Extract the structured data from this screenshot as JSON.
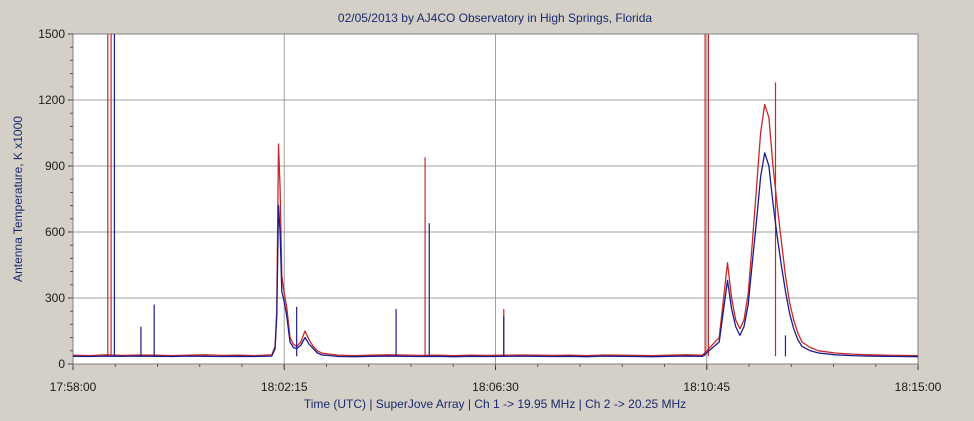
{
  "chart_data": {
    "type": "line",
    "title": "02/05/2013  by  AJ4CO Observatory  in  High Springs, Florida",
    "xlabel": "Time (UTC)  |  SuperJove Array  |  Ch 1 -> 19.95 MHz  |  Ch 2 -> 20.25 MHz",
    "ylabel": "Antenna Temperature, K x1000",
    "x_tick_labels": [
      "17:58:00",
      "18:02:15",
      "18:06:30",
      "18:10:45",
      "18:15:00"
    ],
    "x_tick_seconds": [
      0,
      255,
      510,
      765,
      1020
    ],
    "xlim_seconds": [
      0,
      1020
    ],
    "y_ticks": [
      0,
      300,
      600,
      900,
      1200,
      1500
    ],
    "ylim": [
      0,
      1500
    ],
    "grid": true,
    "colors": {
      "ch1": "#c62828",
      "ch2": "#1c1c8c",
      "grid": "#a0a0a0",
      "plot_bg": "#ffffff",
      "frame_bg": "#d4d0c8"
    },
    "series": [
      {
        "name": "Ch 1 -> 19.95 MHz",
        "color": "#c62828",
        "x": [
          0,
          20,
          40,
          60,
          80,
          100,
          120,
          140,
          160,
          180,
          200,
          220,
          240,
          244,
          246,
          248,
          250,
          252,
          255,
          258,
          262,
          266,
          270,
          275,
          280,
          285,
          290,
          295,
          300,
          310,
          320,
          340,
          360,
          380,
          400,
          420,
          440,
          460,
          480,
          500,
          520,
          540,
          560,
          580,
          600,
          620,
          640,
          660,
          680,
          700,
          720,
          740,
          760,
          780,
          790,
          795,
          800,
          805,
          810,
          815,
          820,
          825,
          830,
          835,
          840,
          845,
          850,
          855,
          860,
          865,
          870,
          875,
          880,
          890,
          900,
          920,
          940,
          960,
          980,
          1000,
          1020
        ],
        "values": [
          40,
          38,
          42,
          39,
          41,
          40,
          38,
          40,
          42,
          39,
          40,
          38,
          42,
          80,
          250,
          1000,
          800,
          400,
          320,
          260,
          120,
          90,
          80,
          100,
          150,
          110,
          80,
          60,
          50,
          45,
          40,
          38,
          40,
          42,
          41,
          39,
          40,
          38,
          40,
          39,
          40,
          41,
          40,
          39,
          40,
          38,
          41,
          40,
          39,
          38,
          40,
          42,
          40,
          120,
          460,
          300,
          200,
          160,
          200,
          320,
          550,
          800,
          1050,
          1180,
          1120,
          900,
          720,
          560,
          400,
          280,
          200,
          140,
          100,
          75,
          60,
          50,
          45,
          42,
          40,
          39,
          38
        ],
        "spikes": [
          {
            "x": 42,
            "y": 1500
          },
          {
            "x": 46,
            "y": 1500
          },
          {
            "x": 425,
            "y": 940
          },
          {
            "x": 520,
            "y": 250
          },
          {
            "x": 763,
            "y": 1500
          },
          {
            "x": 767,
            "y": 1500
          },
          {
            "x": 848,
            "y": 1280
          }
        ]
      },
      {
        "name": "Ch 2 -> 20.25 MHz",
        "color": "#1c1c8c",
        "x": [
          0,
          20,
          40,
          60,
          80,
          100,
          120,
          140,
          160,
          180,
          200,
          220,
          240,
          244,
          246,
          248,
          250,
          252,
          255,
          258,
          262,
          266,
          270,
          275,
          280,
          285,
          290,
          295,
          300,
          310,
          320,
          340,
          360,
          380,
          400,
          420,
          440,
          460,
          480,
          500,
          520,
          540,
          560,
          580,
          600,
          620,
          640,
          660,
          680,
          700,
          720,
          740,
          760,
          780,
          790,
          795,
          800,
          805,
          810,
          815,
          820,
          825,
          830,
          835,
          840,
          845,
          850,
          855,
          860,
          865,
          870,
          875,
          880,
          890,
          900,
          920,
          940,
          960,
          980,
          1000,
          1020
        ],
        "values": [
          35,
          34,
          36,
          35,
          36,
          35,
          34,
          36,
          35,
          34,
          35,
          34,
          36,
          70,
          220,
          720,
          600,
          330,
          280,
          220,
          100,
          75,
          70,
          85,
          120,
          90,
          70,
          50,
          42,
          38,
          34,
          33,
          35,
          36,
          35,
          34,
          35,
          33,
          35,
          34,
          35,
          36,
          35,
          34,
          35,
          33,
          36,
          35,
          34,
          33,
          35,
          36,
          35,
          100,
          380,
          250,
          170,
          130,
          170,
          270,
          460,
          650,
          850,
          960,
          900,
          730,
          580,
          450,
          330,
          230,
          160,
          110,
          80,
          60,
          50,
          42,
          38,
          36,
          35,
          34,
          33
        ],
        "spikes": [
          {
            "x": 50,
            "y": 1500
          },
          {
            "x": 98,
            "y": 270
          },
          {
            "x": 82,
            "y": 170
          },
          {
            "x": 270,
            "y": 260
          },
          {
            "x": 390,
            "y": 250
          },
          {
            "x": 430,
            "y": 640
          },
          {
            "x": 520,
            "y": 220
          },
          {
            "x": 860,
            "y": 130
          }
        ]
      }
    ]
  }
}
